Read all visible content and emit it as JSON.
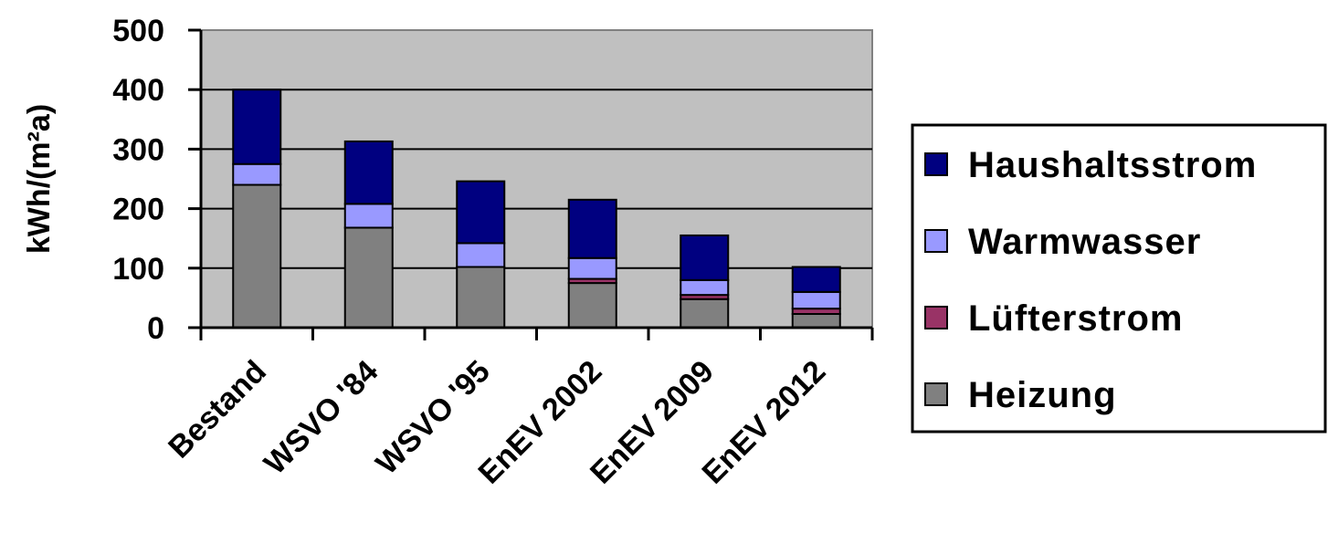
{
  "chart_data": {
    "type": "bar",
    "stacked": true,
    "categories": [
      "Bestand",
      "WSVO '84",
      "WSVO '95",
      "EnEV 2002",
      "EnEV 2009",
      "EnEV 2012"
    ],
    "series": [
      {
        "name": "Heizung",
        "color": "#808080",
        "values": [
          240,
          168,
          102,
          75,
          48,
          23
        ]
      },
      {
        "name": "Lüfterstrom",
        "color": "#993366",
        "values": [
          0,
          0,
          0,
          7,
          7,
          9
        ]
      },
      {
        "name": "Warmwasser",
        "color": "#9999ff",
        "values": [
          35,
          40,
          40,
          35,
          25,
          28
        ]
      },
      {
        "name": "Haushaltsstrom",
        "color": "#000080",
        "values": [
          125,
          105,
          104,
          98,
          75,
          42
        ]
      }
    ],
    "legend_order": [
      "Haushaltsstrom",
      "Warmwasser",
      "Lüfterstrom",
      "Heizung"
    ],
    "ylabel": "kWh/(m²a)",
    "ylim": [
      0,
      500
    ],
    "yticks": [
      "0",
      "100",
      "200",
      "300",
      "400",
      "500"
    ],
    "grid": true,
    "plot_background": "#c0c0c0",
    "legend_position": "right"
  }
}
